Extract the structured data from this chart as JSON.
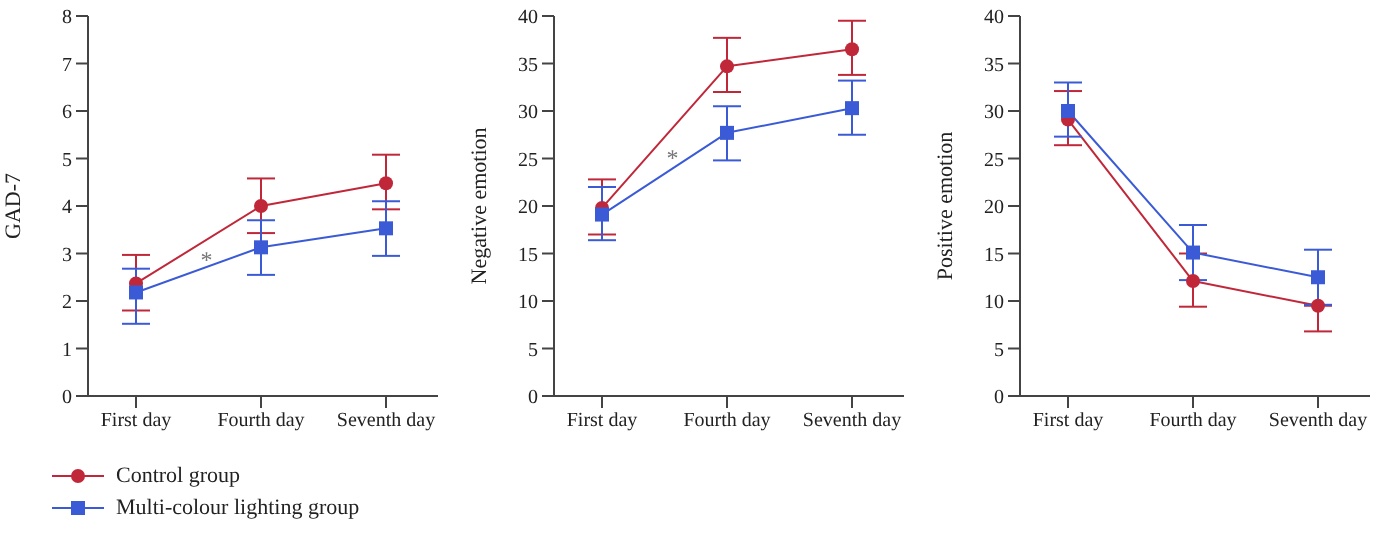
{
  "chart_data": [
    {
      "type": "line",
      "ylabel": "GAD-7",
      "categories": [
        "First day",
        "Fourth day",
        "Seventh day"
      ],
      "ylim": [
        0,
        8
      ],
      "yticks": [
        0,
        1,
        2,
        3,
        4,
        5,
        6,
        7,
        8
      ],
      "grid": false,
      "legend": "bottom left",
      "annotations": [
        "*"
      ],
      "series": [
        {
          "name": "Control group",
          "color": "#c0283a",
          "marker": "circle",
          "values": [
            2.37,
            4.0,
            4.48
          ],
          "errors": [
            [
              1.8,
              2.97
            ],
            [
              3.43,
              4.58
            ],
            [
              3.93,
              5.08
            ]
          ]
        },
        {
          "name": "Multi-colour lighting group",
          "color": "#3b5bd6",
          "marker": "square",
          "values": [
            2.18,
            3.13,
            3.53
          ],
          "errors": [
            [
              1.52,
              2.68
            ],
            [
              2.55,
              3.7
            ],
            [
              2.95,
              4.1
            ]
          ]
        }
      ]
    },
    {
      "type": "line",
      "ylabel": "Negative emotion",
      "categories": [
        "First day",
        "Fourth day",
        "Seventh day"
      ],
      "ylim": [
        0,
        40
      ],
      "yticks": [
        0,
        5,
        10,
        15,
        20,
        25,
        30,
        35,
        40
      ],
      "grid": false,
      "annotations": [
        "*"
      ],
      "series": [
        {
          "color": "#c0283a",
          "marker": "circle",
          "values": [
            19.8,
            34.7,
            36.5
          ],
          "errors": [
            [
              17.0,
              22.8
            ],
            [
              32.0,
              37.7
            ],
            [
              33.8,
              39.5
            ]
          ]
        },
        {
          "color": "#3b5bd6",
          "marker": "square",
          "values": [
            19.1,
            27.7,
            30.3
          ],
          "errors": [
            [
              16.4,
              22.0
            ],
            [
              24.8,
              30.5
            ],
            [
              27.5,
              33.2
            ]
          ]
        }
      ]
    },
    {
      "type": "line",
      "ylabel": "Positive emotion",
      "categories": [
        "First day",
        "Fourth day",
        "Seventh day"
      ],
      "ylim": [
        0,
        40
      ],
      "yticks": [
        0,
        5,
        10,
        15,
        20,
        25,
        30,
        35,
        40
      ],
      "grid": false,
      "series": [
        {
          "color": "#c0283a",
          "marker": "circle",
          "values": [
            29.1,
            12.1,
            9.5
          ],
          "errors": [
            [
              26.4,
              32.1
            ],
            [
              9.4,
              15.0
            ],
            [
              6.8,
              9.5
            ]
          ]
        },
        {
          "color": "#3b5bd6",
          "marker": "square",
          "values": [
            30.0,
            15.1,
            12.5
          ],
          "errors": [
            [
              27.3,
              33.0
            ],
            [
              12.2,
              18.0
            ],
            [
              9.6,
              15.4
            ]
          ]
        }
      ]
    }
  ]
}
